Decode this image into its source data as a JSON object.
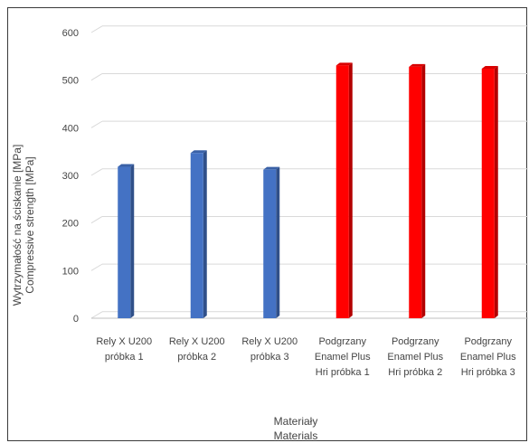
{
  "chart_data": {
    "type": "bar",
    "categories": [
      [
        "Rely X U200",
        "próbka 1"
      ],
      [
        "Rely X U200",
        "próbka 2"
      ],
      [
        "Rely X U200",
        "próbka 3"
      ],
      [
        "Podgrzany",
        "Enamel Plus",
        "Hri próbka 1"
      ],
      [
        "Podgrzany",
        "Enamel Plus",
        "Hri próbka 2"
      ],
      [
        "Podgrzany",
        "Enamel Plus",
        "Hri próbka 3"
      ]
    ],
    "values": [
      318,
      347,
      312,
      531,
      528,
      524
    ],
    "bar_colors": [
      "#4472C4",
      "#4472C4",
      "#4472C4",
      "#FF0000",
      "#FF0000",
      "#FF0000"
    ],
    "ylim": [
      0,
      600
    ],
    "yticks": [
      0,
      100,
      200,
      300,
      400,
      500,
      600
    ],
    "ylabel": [
      "Wytrzymałość na ściskanie [MPa]",
      "Compressive strength [MPa]"
    ],
    "xlabel": [
      "Materiały",
      "Materials"
    ],
    "title": "",
    "grid": true
  }
}
